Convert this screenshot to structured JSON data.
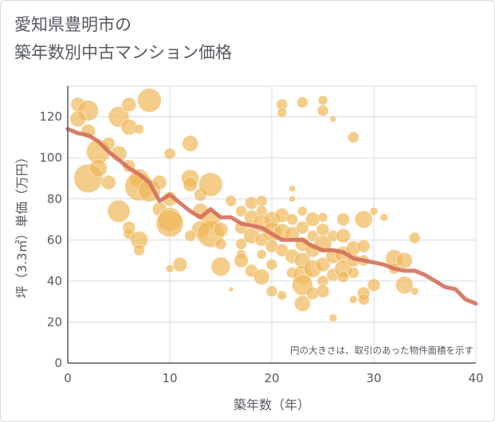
{
  "title": {
    "line1": "愛知県豊明市の",
    "line2": "築年数別中古マンション価格"
  },
  "chart_data": {
    "type": "scatter",
    "xlabel": "築年数（年）",
    "ylabel": "坪（3.3㎡）単価（万円）",
    "xlim": [
      0,
      40
    ],
    "ylim": [
      0,
      135
    ],
    "xticks": [
      0,
      10,
      20,
      30,
      40
    ],
    "yticks": [
      0,
      20,
      40,
      60,
      80,
      100,
      120
    ],
    "grid": true,
    "annotation": "円の大きさは、取引のあった物件面積を示す",
    "colors": {
      "bubble": "#f0b85a",
      "trend": "#d4705a",
      "grid": "#d4dbe3",
      "axis": "#555a60"
    },
    "bubbles": [
      {
        "x": 1,
        "y": 126,
        "s": 9
      },
      {
        "x": 2,
        "y": 123,
        "s": 13
      },
      {
        "x": 1,
        "y": 119,
        "s": 10
      },
      {
        "x": 2,
        "y": 113,
        "s": 9
      },
      {
        "x": 3,
        "y": 103,
        "s": 15
      },
      {
        "x": 2,
        "y": 90,
        "s": 18
      },
      {
        "x": 3,
        "y": 95,
        "s": 11
      },
      {
        "x": 4,
        "y": 88,
        "s": 9
      },
      {
        "x": 4,
        "y": 107,
        "s": 8
      },
      {
        "x": 5,
        "y": 120,
        "s": 13
      },
      {
        "x": 6,
        "y": 126,
        "s": 9
      },
      {
        "x": 6,
        "y": 115,
        "s": 10
      },
      {
        "x": 7,
        "y": 114,
        "s": 6
      },
      {
        "x": 8,
        "y": 128,
        "s": 15
      },
      {
        "x": 5,
        "y": 102,
        "s": 10
      },
      {
        "x": 6,
        "y": 96,
        "s": 8
      },
      {
        "x": 7,
        "y": 90,
        "s": 12
      },
      {
        "x": 7,
        "y": 86,
        "s": 18
      },
      {
        "x": 8,
        "y": 84,
        "s": 14
      },
      {
        "x": 9,
        "y": 88,
        "s": 9
      },
      {
        "x": 5,
        "y": 74,
        "s": 14
      },
      {
        "x": 6,
        "y": 66,
        "s": 8
      },
      {
        "x": 6,
        "y": 63,
        "s": 7
      },
      {
        "x": 7,
        "y": 60,
        "s": 11
      },
      {
        "x": 7,
        "y": 55,
        "s": 7
      },
      {
        "x": 9,
        "y": 75,
        "s": 9
      },
      {
        "x": 10,
        "y": 70,
        "s": 15
      },
      {
        "x": 10,
        "y": 68,
        "s": 17
      },
      {
        "x": 10,
        "y": 80,
        "s": 9
      },
      {
        "x": 10,
        "y": 102,
        "s": 7
      },
      {
        "x": 12,
        "y": 107,
        "s": 10
      },
      {
        "x": 12,
        "y": 90,
        "s": 11
      },
      {
        "x": 12,
        "y": 87,
        "s": 9
      },
      {
        "x": 13,
        "y": 82,
        "s": 8
      },
      {
        "x": 14,
        "y": 87,
        "s": 15
      },
      {
        "x": 13,
        "y": 74,
        "s": 10
      },
      {
        "x": 14,
        "y": 70,
        "s": 12
      },
      {
        "x": 13,
        "y": 65,
        "s": 11
      },
      {
        "x": 14,
        "y": 63,
        "s": 17
      },
      {
        "x": 15,
        "y": 65,
        "s": 9
      },
      {
        "x": 15,
        "y": 58,
        "s": 7
      },
      {
        "x": 11,
        "y": 48,
        "s": 9
      },
      {
        "x": 10,
        "y": 46,
        "s": 5
      },
      {
        "x": 12,
        "y": 62,
        "s": 7
      },
      {
        "x": 15,
        "y": 47,
        "s": 12
      },
      {
        "x": 16,
        "y": 36,
        "s": 3
      },
      {
        "x": 16,
        "y": 79,
        "s": 7
      },
      {
        "x": 17,
        "y": 74,
        "s": 7
      },
      {
        "x": 17,
        "y": 66,
        "s": 8
      },
      {
        "x": 17,
        "y": 58,
        "s": 7
      },
      {
        "x": 17,
        "y": 53,
        "s": 6
      },
      {
        "x": 17,
        "y": 50,
        "s": 9
      },
      {
        "x": 18,
        "y": 78,
        "s": 8
      },
      {
        "x": 18,
        "y": 71,
        "s": 9
      },
      {
        "x": 18,
        "y": 62,
        "s": 10
      },
      {
        "x": 18,
        "y": 45,
        "s": 8
      },
      {
        "x": 19,
        "y": 79,
        "s": 7
      },
      {
        "x": 19,
        "y": 74,
        "s": 7
      },
      {
        "x": 19,
        "y": 68,
        "s": 11
      },
      {
        "x": 19,
        "y": 60,
        "s": 8
      },
      {
        "x": 19,
        "y": 53,
        "s": 6
      },
      {
        "x": 19,
        "y": 42,
        "s": 10
      },
      {
        "x": 20,
        "y": 70,
        "s": 10
      },
      {
        "x": 20,
        "y": 64,
        "s": 12
      },
      {
        "x": 20,
        "y": 57,
        "s": 8
      },
      {
        "x": 20,
        "y": 48,
        "s": 7
      },
      {
        "x": 20,
        "y": 35,
        "s": 7
      },
      {
        "x": 21,
        "y": 126,
        "s": 7
      },
      {
        "x": 21,
        "y": 122,
        "s": 6
      },
      {
        "x": 21,
        "y": 72,
        "s": 9
      },
      {
        "x": 21,
        "y": 64,
        "s": 10
      },
      {
        "x": 21,
        "y": 55,
        "s": 8
      },
      {
        "x": 21,
        "y": 33,
        "s": 6
      },
      {
        "x": 22,
        "y": 85,
        "s": 4
      },
      {
        "x": 22,
        "y": 80,
        "s": 4
      },
      {
        "x": 22,
        "y": 70,
        "s": 7
      },
      {
        "x": 22,
        "y": 63,
        "s": 9
      },
      {
        "x": 22,
        "y": 52,
        "s": 9
      },
      {
        "x": 22,
        "y": 44,
        "s": 7
      },
      {
        "x": 23,
        "y": 127,
        "s": 7
      },
      {
        "x": 23,
        "y": 74,
        "s": 6
      },
      {
        "x": 23,
        "y": 66,
        "s": 8
      },
      {
        "x": 23,
        "y": 58,
        "s": 9
      },
      {
        "x": 23,
        "y": 50,
        "s": 10
      },
      {
        "x": 23,
        "y": 43,
        "s": 12
      },
      {
        "x": 23,
        "y": 38,
        "s": 13
      },
      {
        "x": 23,
        "y": 29,
        "s": 10
      },
      {
        "x": 24,
        "y": 70,
        "s": 9
      },
      {
        "x": 24,
        "y": 62,
        "s": 7
      },
      {
        "x": 24,
        "y": 55,
        "s": 9
      },
      {
        "x": 24,
        "y": 46,
        "s": 11
      },
      {
        "x": 24,
        "y": 34,
        "s": 8
      },
      {
        "x": 25,
        "y": 128,
        "s": 6
      },
      {
        "x": 25,
        "y": 123,
        "s": 7
      },
      {
        "x": 25,
        "y": 71,
        "s": 6
      },
      {
        "x": 25,
        "y": 65,
        "s": 8
      },
      {
        "x": 25,
        "y": 58,
        "s": 11
      },
      {
        "x": 25,
        "y": 48,
        "s": 9
      },
      {
        "x": 25,
        "y": 40,
        "s": 7
      },
      {
        "x": 25,
        "y": 35,
        "s": 8
      },
      {
        "x": 26,
        "y": 119,
        "s": 4
      },
      {
        "x": 26,
        "y": 62,
        "s": 7
      },
      {
        "x": 26,
        "y": 52,
        "s": 9
      },
      {
        "x": 26,
        "y": 43,
        "s": 8
      },
      {
        "x": 26,
        "y": 22,
        "s": 5
      },
      {
        "x": 27,
        "y": 70,
        "s": 8
      },
      {
        "x": 27,
        "y": 62,
        "s": 9
      },
      {
        "x": 27,
        "y": 53,
        "s": 10
      },
      {
        "x": 27,
        "y": 46,
        "s": 11
      },
      {
        "x": 27,
        "y": 42,
        "s": 7
      },
      {
        "x": 28,
        "y": 110,
        "s": 7
      },
      {
        "x": 28,
        "y": 56,
        "s": 9
      },
      {
        "x": 28,
        "y": 50,
        "s": 8
      },
      {
        "x": 28,
        "y": 44,
        "s": 7
      },
      {
        "x": 28,
        "y": 31,
        "s": 5
      },
      {
        "x": 29,
        "y": 70,
        "s": 11
      },
      {
        "x": 29,
        "y": 57,
        "s": 8
      },
      {
        "x": 29,
        "y": 50,
        "s": 7
      },
      {
        "x": 29,
        "y": 34,
        "s": 8
      },
      {
        "x": 29,
        "y": 31,
        "s": 7
      },
      {
        "x": 30,
        "y": 74,
        "s": 5
      },
      {
        "x": 30,
        "y": 38,
        "s": 8
      },
      {
        "x": 31,
        "y": 71,
        "s": 5
      },
      {
        "x": 32,
        "y": 51,
        "s": 11
      },
      {
        "x": 32,
        "y": 46,
        "s": 7
      },
      {
        "x": 33,
        "y": 50,
        "s": 10
      },
      {
        "x": 33,
        "y": 38,
        "s": 11
      },
      {
        "x": 34,
        "y": 61,
        "s": 7
      },
      {
        "x": 34,
        "y": 35,
        "s": 5
      }
    ],
    "trend": {
      "x": [
        0,
        1,
        2,
        3,
        4,
        5,
        6,
        7,
        8,
        9,
        10,
        11,
        12,
        13,
        14,
        15,
        16,
        17,
        18,
        19,
        20,
        21,
        22,
        23,
        24,
        25,
        26,
        27,
        28,
        29,
        30,
        31,
        32,
        33,
        34,
        35,
        36,
        37,
        38,
        39,
        40
      ],
      "y": [
        114,
        112,
        111,
        108,
        103,
        99,
        95,
        92,
        88,
        79,
        82,
        78,
        74,
        71,
        75,
        71,
        71,
        68,
        67,
        66,
        63,
        60,
        60,
        60,
        57,
        55,
        55,
        54,
        51,
        50,
        49,
        48,
        46,
        45,
        45,
        43,
        40,
        37,
        36,
        31,
        29
      ]
    }
  }
}
